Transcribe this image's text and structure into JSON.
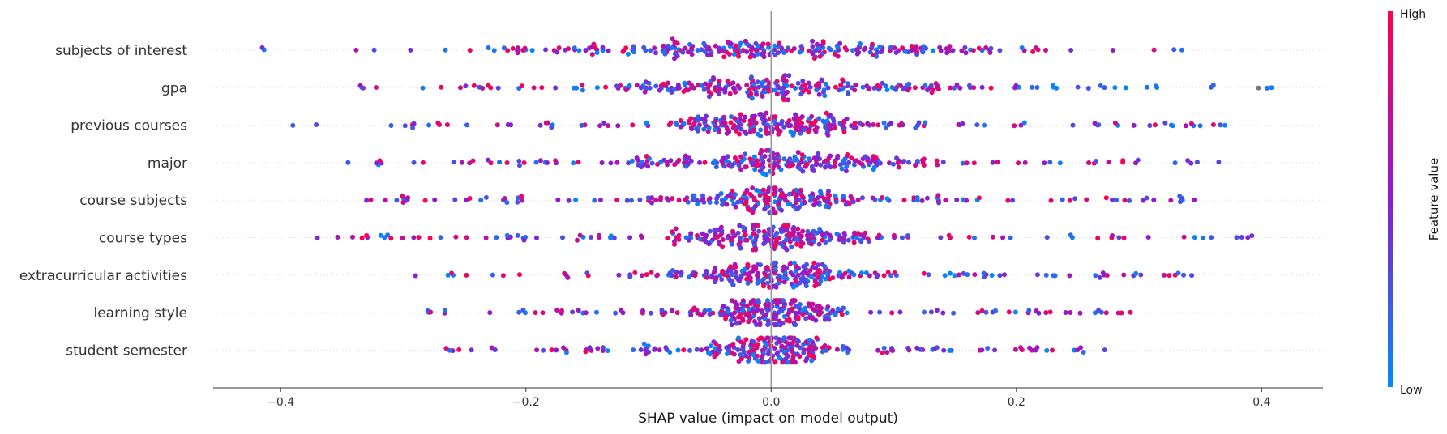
{
  "chart_data": {
    "type": "scatter",
    "subtype": "beeswarm",
    "title": "",
    "xlabel": "SHAP value (impact on model output)",
    "xlim": [
      -0.455,
      0.45
    ],
    "xticks": [
      -0.4,
      -0.2,
      0.0,
      0.2,
      0.4
    ],
    "xtick_labels": [
      "−0.4",
      "−0.2",
      "0.0",
      "0.2",
      "0.4"
    ],
    "zero_line": 0.0,
    "features": [
      {
        "name": "subjects of interest",
        "min": -0.415,
        "max": 0.335,
        "spread": 0.095,
        "sparse": 0.15
      },
      {
        "name": "gpa",
        "min": -0.335,
        "max": 0.408,
        "spread": 0.085,
        "sparse": 0.2
      },
      {
        "name": "previous courses",
        "min": -0.39,
        "max": 0.37,
        "spread": 0.045,
        "sparse": 0.3
      },
      {
        "name": "major",
        "min": -0.345,
        "max": 0.365,
        "spread": 0.05,
        "sparse": 0.3
      },
      {
        "name": "course subjects",
        "min": -0.33,
        "max": 0.345,
        "spread": 0.04,
        "sparse": 0.32
      },
      {
        "name": "course types",
        "min": -0.37,
        "max": 0.392,
        "spread": 0.04,
        "sparse": 0.32
      },
      {
        "name": "extracurricular activities",
        "min": -0.29,
        "max": 0.343,
        "spread": 0.035,
        "sparse": 0.34
      },
      {
        "name": "learning style",
        "min": -0.28,
        "max": 0.293,
        "spread": 0.03,
        "sparse": 0.34
      },
      {
        "name": "student semester",
        "min": -0.265,
        "max": 0.272,
        "spread": 0.025,
        "sparse": 0.36
      }
    ],
    "points_per_feature": 260,
    "colorbar": {
      "title": "Feature value",
      "high_label": "High",
      "low_label": "Low",
      "low_color": "#008bfb",
      "high_color": "#ff0052",
      "mid_color": "#8b1dd0"
    },
    "grid": false,
    "legend": "colorbar-right"
  }
}
